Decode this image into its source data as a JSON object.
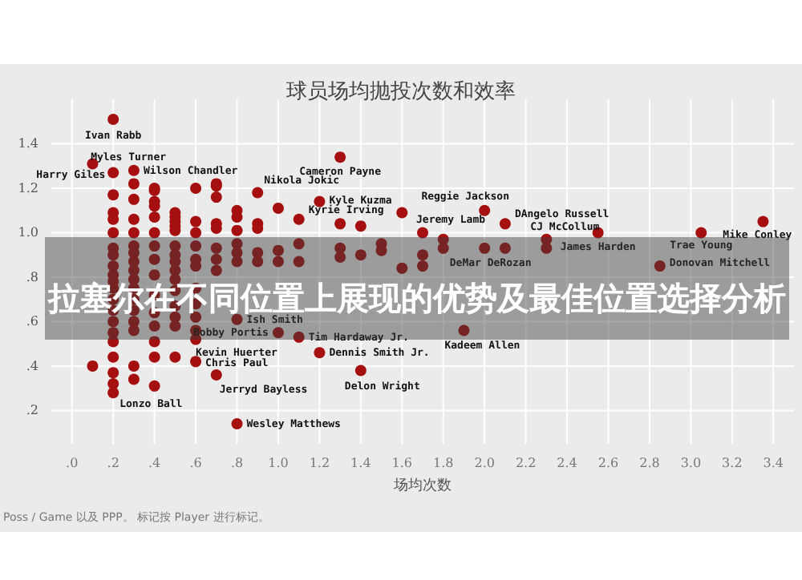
{
  "chart_data": {
    "type": "scatter",
    "title": "球员场均抛投次数和效率",
    "xlabel": "场均次数",
    "x": [
      0.1,
      0.1,
      0.2,
      0.2,
      0.2,
      0.2,
      0.2,
      0.2,
      0.2,
      0.2,
      0.2,
      0.2,
      0.2,
      0.2,
      0.2,
      0.2,
      0.2,
      0.2,
      0.2,
      0.2,
      0.2,
      0.2,
      0.2,
      0.3,
      0.3,
      0.3,
      0.3,
      0.3,
      0.3,
      0.3,
      0.3,
      0.3,
      0.3,
      0.3,
      0.3,
      0.3,
      0.3,
      0.3,
      0.3,
      0.3,
      0.4,
      0.4,
      0.4,
      0.4,
      0.4,
      0.4,
      0.4,
      0.4,
      0.4,
      0.4,
      0.4,
      0.4,
      0.4,
      0.4,
      0.4,
      0.5,
      0.5,
      0.5,
      0.5,
      0.5,
      0.5,
      0.5,
      0.5,
      0.5,
      0.5,
      0.5,
      0.5,
      0.5,
      0.5,
      0.5,
      0.6,
      0.6,
      0.6,
      0.6,
      0.6,
      0.6,
      0.6,
      0.6,
      0.6,
      0.6,
      0.6,
      0.6,
      0.7,
      0.7,
      0.7,
      0.7,
      0.7,
      0.7,
      0.7,
      0.7,
      0.7,
      0.8,
      0.8,
      0.8,
      0.8,
      0.8,
      0.8,
      0.8,
      0.8,
      0.9,
      0.9,
      0.9,
      0.9,
      0.9,
      1.0,
      1.0,
      1.0,
      1.0,
      1.1,
      1.1,
      1.1,
      1.1,
      1.2,
      1.2,
      1.3,
      1.3,
      1.3,
      1.3,
      1.4,
      1.4,
      1.4,
      1.5,
      1.5,
      1.6,
      1.6,
      1.7,
      1.7,
      1.7,
      1.8,
      1.8,
      1.9,
      2.0,
      2.0,
      2.1,
      2.1,
      2.3,
      2.3,
      2.55,
      2.85,
      3.05,
      3.35
    ],
    "series": [
      {
        "color": "#a50f0f",
        "values": [
          1.31,
          0.4,
          1.51,
          1.27,
          1.17,
          1.09,
          1.06,
          1.0,
          0.93,
          0.9,
          0.85,
          0.81,
          0.78,
          0.75,
          0.7,
          0.65,
          0.6,
          0.55,
          0.51,
          0.44,
          0.37,
          0.32,
          0.28,
          1.28,
          1.22,
          1.15,
          1.06,
          1.0,
          0.94,
          0.91,
          0.87,
          0.83,
          0.79,
          0.75,
          0.7,
          0.65,
          0.6,
          0.56,
          0.4,
          0.34,
          1.2,
          1.19,
          1.14,
          1.12,
          1.07,
          1.0,
          0.94,
          0.88,
          0.81,
          0.72,
          0.64,
          0.58,
          0.51,
          0.44,
          0.31,
          1.09,
          1.07,
          1.05,
          1.03,
          1.01,
          0.94,
          0.9,
          0.87,
          0.83,
          0.79,
          0.74,
          0.67,
          0.62,
          0.58,
          0.44,
          1.2,
          1.05,
          1.0,
          0.94,
          0.88,
          0.85,
          0.75,
          0.68,
          0.62,
          0.56,
          0.52,
          0.42,
          1.22,
          1.21,
          1.16,
          1.04,
          1.02,
          0.93,
          0.88,
          0.83,
          0.36,
          1.1,
          1.07,
          1.01,
          0.95,
          0.91,
          0.87,
          0.61,
          0.14,
          1.18,
          1.04,
          1.02,
          0.91,
          0.87,
          1.11,
          0.92,
          0.87,
          0.55,
          1.06,
          0.95,
          0.87,
          0.53,
          1.14,
          0.46,
          1.34,
          1.04,
          0.93,
          0.89,
          1.03,
          0.9,
          0.38,
          0.95,
          0.92,
          1.09,
          0.84,
          1.0,
          0.9,
          0.85,
          0.97,
          0.93,
          0.56,
          1.1,
          0.93,
          1.04,
          0.93,
          0.97,
          0.93,
          1.0,
          0.85,
          1.0,
          1.05
        ]
      }
    ],
    "xlim": [
      -0.1,
      3.5
    ],
    "xticks": [
      {
        "value": 0,
        "label": ".0"
      },
      {
        "value": 0.2,
        "label": ".2"
      },
      {
        "value": 0.4,
        "label": ".4"
      },
      {
        "value": 0.6,
        "label": ".6"
      },
      {
        "value": 0.8,
        "label": ".8"
      },
      {
        "value": 1.0,
        "label": "1.0"
      },
      {
        "value": 1.2,
        "label": "1.2"
      },
      {
        "value": 1.4,
        "label": "1.4"
      },
      {
        "value": 1.6,
        "label": "1.6"
      },
      {
        "value": 1.8,
        "label": "1.8"
      },
      {
        "value": 2.0,
        "label": "2.0"
      },
      {
        "value": 2.2,
        "label": "2.2"
      },
      {
        "value": 2.4,
        "label": "2.4"
      },
      {
        "value": 2.6,
        "label": "2.6"
      },
      {
        "value": 2.8,
        "label": "2.8"
      },
      {
        "value": 3.0,
        "label": "3.0"
      },
      {
        "value": 3.2,
        "label": "3.2"
      },
      {
        "value": 3.4,
        "label": "3.4"
      }
    ],
    "ylim": [
      0.05,
      1.6
    ],
    "yticks": [
      {
        "value": 0.2,
        "label": ".2"
      },
      {
        "value": 0.4,
        "label": ".4"
      },
      {
        "value": 0.6,
        "label": ".6"
      },
      {
        "value": 0.8,
        "label": ".8"
      },
      {
        "value": 1.0,
        "label": "1.0"
      },
      {
        "value": 1.2,
        "label": "1.2"
      },
      {
        "value": 1.4,
        "label": "1.4"
      }
    ],
    "grid": true,
    "marker": "circle",
    "annotations": [
      "拉塞尔在不同位置上展现的优势及最佳位置选择分析",
      "Poss / Game 以及 PPP。 标记按 Player 进行标记。",
      {
        "text": "Ivan Rabb",
        "x": 0.2,
        "y": 1.51
      },
      {
        "text": "Myles Turner",
        "x": 0.2,
        "y": 1.27
      },
      {
        "text": "Harry Giles",
        "x": 0.1,
        "y": 1.31
      },
      {
        "text": "Wilson Chandler",
        "x": 0.3,
        "y": 1.28
      },
      {
        "text": "Nikola Jokic",
        "x": 0.9,
        "y": 1.18
      },
      {
        "text": "Cameron Payne",
        "x": 1.3,
        "y": 1.34
      },
      {
        "text": "Kyle Kuzma",
        "x": 1.2,
        "y": 1.14
      },
      {
        "text": "Kyrie Irving",
        "x": 1.1,
        "y": 1.06
      },
      {
        "text": "Reggie Jackson",
        "x": 2.0,
        "y": 1.1
      },
      {
        "text": "DAngelo Russell",
        "x": 2.1,
        "y": 1.04
      },
      {
        "text": "Jeremy Lamb",
        "x": 1.7,
        "y": 1.0
      },
      {
        "text": "CJ McCollum",
        "x": 2.3,
        "y": 0.97
      },
      {
        "text": "James Harden",
        "x": 2.55,
        "y": 1.0
      },
      {
        "text": "Trae Young",
        "x": 3.05,
        "y": 1.0
      },
      {
        "text": "Mike Conley",
        "x": 3.35,
        "y": 1.05
      },
      {
        "text": "DeMar DeRozan",
        "x": 1.8,
        "y": 0.93
      },
      {
        "text": "Donovan Mitchell",
        "x": 2.85,
        "y": 0.85
      },
      {
        "text": "Ish Smith",
        "x": 0.8,
        "y": 0.61
      },
      {
        "text": "Bobby Portis",
        "x": 1.0,
        "y": 0.55
      },
      {
        "text": "Tim Hardaway Jr.",
        "x": 1.1,
        "y": 0.53
      },
      {
        "text": "Kevin Huerter",
        "x": 0.6,
        "y": 0.52
      },
      {
        "text": "Chris Paul",
        "x": 0.6,
        "y": 0.42
      },
      {
        "text": "Dennis Smith Jr.",
        "x": 1.2,
        "y": 0.46
      },
      {
        "text": "Jerryd Bayless",
        "x": 0.7,
        "y": 0.36
      },
      {
        "text": "Delon Wright",
        "x": 1.4,
        "y": 0.38
      },
      {
        "text": "Lonzo Ball",
        "x": 0.2,
        "y": 0.28
      },
      {
        "text": "Wesley Matthews",
        "x": 0.8,
        "y": 0.14
      },
      {
        "text": "Kadeem Allen",
        "x": 1.9,
        "y": 0.56
      }
    ]
  }
}
